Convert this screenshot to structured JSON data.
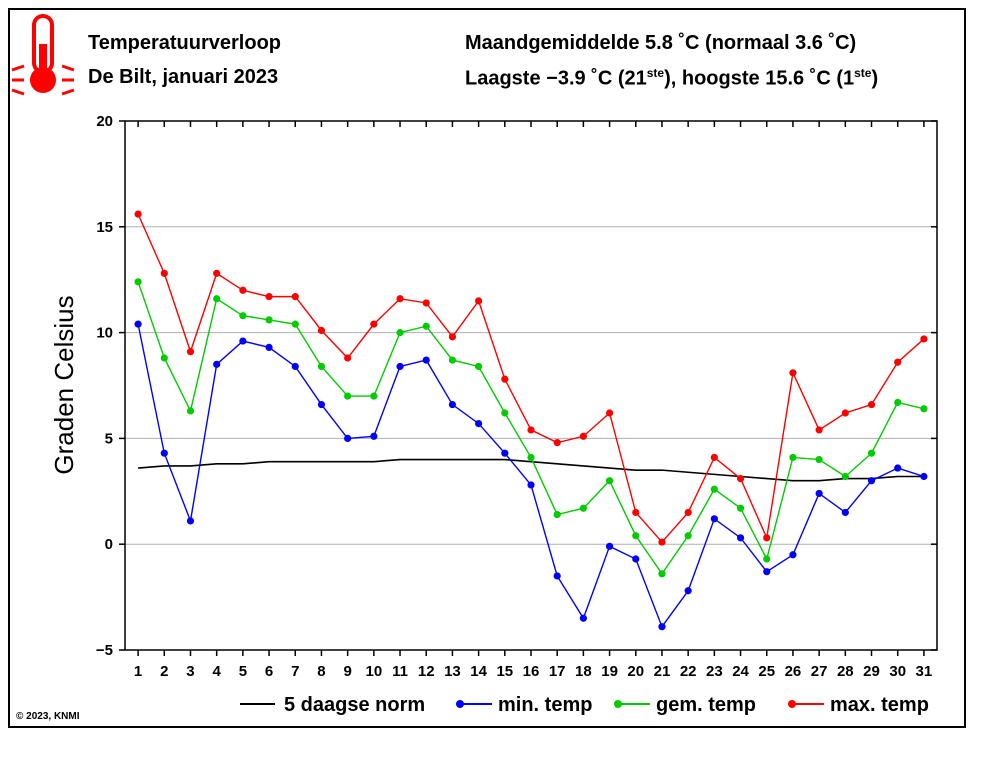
{
  "header": {
    "title": "Temperatuurverloop",
    "subtitle": "De Bilt, januari 2023",
    "stat_line1": "Maandgemiddelde 5.8 ˚C (normaal 3.6 ˚C)",
    "stat_line2_pre": "Laagste −3.9 ˚C (21",
    "stat_line2_sup1": "ste",
    "stat_line2_mid": "), hoogste 15.6 ˚C (1",
    "stat_line2_sup2": "ste",
    "stat_line2_post": ")"
  },
  "copyright": "© 2023, KNMI",
  "icon": "thermometer-icon",
  "colors": {
    "norm": "#000000",
    "min": "#0000ff",
    "gem": "#00cc00",
    "max": "#ff0000",
    "grid": "#b0b0b0",
    "icon": "#ff0000"
  },
  "chart_data": {
    "type": "line",
    "title": "Temperatuurverloop",
    "xlabel": "",
    "ylabel": "Graden Celsius",
    "xlim": [
      0.5,
      31.5
    ],
    "ylim": [
      -5,
      20
    ],
    "yticks": [
      -5,
      0,
      5,
      10,
      15,
      20
    ],
    "ytick_labels": [
      "−5",
      "0",
      "5",
      "10",
      "15",
      "20"
    ],
    "x": [
      1,
      2,
      3,
      4,
      5,
      6,
      7,
      8,
      9,
      10,
      11,
      12,
      13,
      14,
      15,
      16,
      17,
      18,
      19,
      20,
      21,
      22,
      23,
      24,
      25,
      26,
      27,
      28,
      29,
      30,
      31
    ],
    "grid": true,
    "legend_position": "bottom",
    "series": [
      {
        "key": "norm",
        "name": "5 daagse norm",
        "markers": false,
        "values": [
          3.6,
          3.7,
          3.7,
          3.8,
          3.8,
          3.9,
          3.9,
          3.9,
          3.9,
          3.9,
          4.0,
          4.0,
          4.0,
          4.0,
          4.0,
          3.9,
          3.8,
          3.7,
          3.6,
          3.5,
          3.5,
          3.4,
          3.3,
          3.2,
          3.1,
          3.0,
          3.0,
          3.1,
          3.1,
          3.2,
          3.2
        ]
      },
      {
        "key": "min",
        "name": "min. temp",
        "markers": true,
        "values": [
          10.4,
          4.3,
          1.1,
          8.5,
          9.6,
          9.3,
          8.4,
          6.6,
          5.0,
          5.1,
          8.4,
          8.7,
          6.6,
          5.7,
          4.3,
          2.8,
          -1.5,
          -3.5,
          -0.1,
          -0.7,
          -3.9,
          -2.2,
          1.2,
          0.3,
          -1.3,
          -0.5,
          2.4,
          1.5,
          3.0,
          3.6,
          3.2
        ]
      },
      {
        "key": "gem",
        "name": "gem. temp",
        "markers": true,
        "values": [
          12.4,
          8.8,
          6.3,
          11.6,
          10.8,
          10.6,
          10.4,
          8.4,
          7.0,
          7.0,
          10.0,
          10.3,
          8.7,
          8.4,
          6.2,
          4.1,
          1.4,
          1.7,
          3.0,
          0.4,
          -1.4,
          0.4,
          2.6,
          1.7,
          -0.7,
          4.1,
          4.0,
          3.2,
          4.3,
          6.7,
          6.4
        ]
      },
      {
        "key": "max",
        "name": "max. temp",
        "markers": true,
        "values": [
          15.6,
          12.8,
          9.1,
          12.8,
          12.0,
          11.7,
          11.7,
          10.1,
          8.8,
          10.4,
          11.6,
          11.4,
          9.8,
          11.5,
          7.8,
          5.4,
          4.8,
          5.1,
          6.2,
          1.5,
          0.1,
          1.5,
          4.1,
          3.1,
          0.3,
          8.1,
          5.4,
          6.2,
          6.6,
          8.6,
          9.7
        ]
      }
    ]
  }
}
